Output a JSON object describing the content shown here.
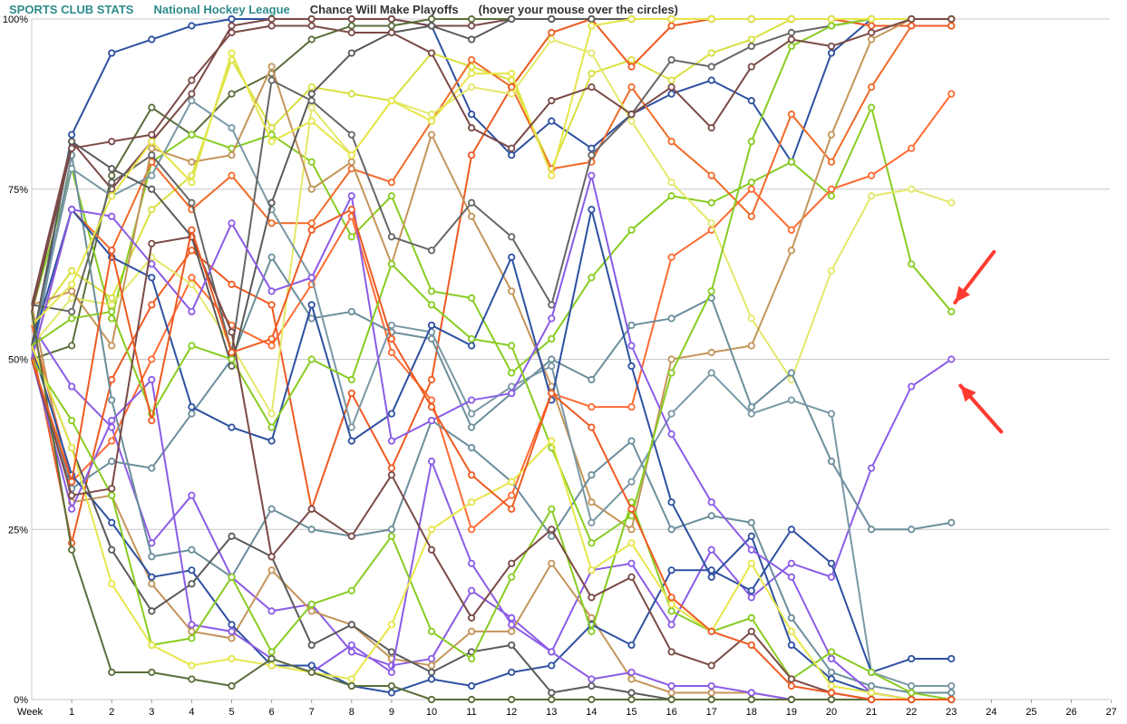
{
  "header": {
    "site": "SPORTS CLUB STATS",
    "league": "National Hockey League",
    "title": "Chance Will Make Playoffs",
    "hint": "(hover your mouse over the circles)"
  },
  "chart_data": {
    "type": "line",
    "title": "Chance Will Make Playoffs",
    "xlabel": "Week",
    "ylabel": "",
    "x_ticks": [
      "Week",
      "1",
      "2",
      "3",
      "4",
      "5",
      "6",
      "7",
      "8",
      "9",
      "10",
      "11",
      "12",
      "13",
      "14",
      "15",
      "16",
      "17",
      "18",
      "19",
      "20",
      "21",
      "22",
      "23",
      "24",
      "25",
      "26",
      "27"
    ],
    "y_ticks": [
      "0%",
      "25%",
      "50%",
      "75%",
      "100%"
    ],
    "xlim": [
      0,
      27
    ],
    "ylim": [
      0,
      100
    ],
    "grid": true,
    "annotations": [
      {
        "type": "arrow",
        "color": "#ff3b30",
        "points_to": {
          "x": 23,
          "y": 57
        }
      },
      {
        "type": "arrow",
        "color": "#ff3b30",
        "points_to": {
          "x": 23,
          "y": 50
        }
      }
    ],
    "series": [
      {
        "color": "#2d50a0",
        "values": [
          50,
          83,
          95,
          97,
          99,
          100,
          100,
          100,
          100,
          100,
          99,
          86,
          80,
          85,
          81,
          86,
          89,
          91,
          88,
          79,
          95,
          100,
          100,
          100
        ]
      },
      {
        "color": "#7a4a46",
        "values": [
          58,
          82,
          75,
          82,
          89,
          99,
          100,
          100,
          100,
          100,
          99,
          99,
          100,
          100,
          100,
          100,
          100,
          100,
          100,
          100,
          100,
          100,
          100,
          100
        ]
      },
      {
        "color": "#5a6e3a",
        "values": [
          50,
          52,
          77,
          87,
          83,
          89,
          92,
          97,
          99,
          99,
          100,
          100,
          100,
          100,
          100,
          100,
          100,
          100,
          100,
          100,
          100,
          100,
          100,
          100
        ]
      },
      {
        "color": "#d9e040",
        "values": [
          55,
          63,
          59,
          72,
          77,
          94,
          84,
          90,
          89,
          88,
          95,
          93,
          91,
          78,
          92,
          94,
          91,
          95,
          97,
          100,
          100,
          100,
          100,
          100
        ]
      },
      {
        "color": "#88cc22",
        "values": [
          57,
          78,
          56,
          79,
          83,
          81,
          83,
          79,
          68,
          74,
          60,
          59,
          48,
          53,
          62,
          69,
          74,
          73,
          76,
          79,
          74,
          87,
          64,
          57
        ]
      },
      {
        "color": "#8b5ce6",
        "values": [
          55,
          46,
          40,
          23,
          30,
          18,
          13,
          14,
          7,
          5,
          6,
          16,
          12,
          7,
          19,
          20,
          11,
          22,
          15,
          20,
          18,
          34,
          46,
          50
        ]
      },
      {
        "color": "#f06a28",
        "values": [
          50,
          72,
          66,
          79,
          72,
          77,
          70,
          70,
          78,
          76,
          85,
          94,
          90,
          78,
          79,
          90,
          82,
          77,
          71,
          86,
          79,
          90,
          99,
          99
        ]
      },
      {
        "color": "#ee5a22",
        "values": [
          52,
          23,
          47,
          58,
          66,
          61,
          58,
          28,
          45,
          34,
          47,
          80,
          90,
          98,
          100,
          93,
          99,
          100,
          100,
          100,
          100,
          99,
          99,
          99
        ]
      },
      {
        "color": "#ff6b33",
        "values": [
          55,
          32,
          38,
          50,
          62,
          55,
          52,
          61,
          71,
          51,
          44,
          25,
          30,
          45,
          43,
          43,
          65,
          69,
          75,
          69,
          75,
          77,
          81,
          89
        ]
      },
      {
        "color": "#e4e86a",
        "values": [
          52,
          59,
          58,
          65,
          61,
          52,
          42,
          87,
          80,
          88,
          86,
          90,
          89,
          97,
          95,
          85,
          76,
          70,
          56,
          47,
          63,
          74,
          75,
          73
        ]
      },
      {
        "color": "#c4955a",
        "values": [
          58,
          60,
          52,
          81,
          79,
          80,
          93,
          75,
          79,
          64,
          83,
          71,
          60,
          46,
          29,
          25,
          50,
          51,
          52,
          66,
          83,
          97,
          100,
          100
        ]
      },
      {
        "color": "#c4955a",
        "values": [
          58,
          29,
          30,
          17,
          10,
          9,
          19,
          13,
          11,
          6,
          5,
          10,
          10,
          20,
          12,
          3,
          1,
          1,
          1,
          0,
          0,
          0,
          0,
          0
        ]
      },
      {
        "color": "#6b8e9b",
        "values": [
          50,
          80,
          44,
          21,
          22,
          18,
          28,
          25,
          24,
          25,
          41,
          37,
          32,
          24,
          33,
          38,
          25,
          27,
          26,
          12,
          4,
          2,
          1,
          1
        ]
      },
      {
        "color": "#6b8e9b",
        "values": [
          50,
          31,
          35,
          34,
          42,
          50,
          65,
          56,
          57,
          54,
          53,
          40,
          45,
          50,
          47,
          55,
          56,
          59,
          43,
          48,
          35,
          25,
          25,
          26
        ]
      },
      {
        "color": "#7a98a5",
        "values": [
          52,
          78,
          74,
          77,
          88,
          84,
          72,
          62,
          40,
          55,
          54,
          42,
          46,
          49,
          26,
          32,
          42,
          48,
          42,
          44,
          42,
          4,
          2,
          2
        ]
      },
      {
        "color": "#2d50a0",
        "values": [
          52,
          72,
          65,
          62,
          43,
          40,
          38,
          58,
          38,
          42,
          55,
          52,
          65,
          44,
          72,
          49,
          29,
          18,
          24,
          8,
          3,
          1,
          0,
          0
        ]
      },
      {
        "color": "#2d50a0",
        "values": [
          52,
          33,
          26,
          18,
          19,
          11,
          5,
          5,
          2,
          1,
          3,
          2,
          4,
          5,
          11,
          8,
          19,
          19,
          16,
          25,
          20,
          4,
          6,
          6
        ]
      },
      {
        "color": "#5a5a5a",
        "values": [
          52,
          82,
          78,
          75,
          68,
          49,
          73,
          89,
          95,
          98,
          99,
          97,
          100,
          100,
          100,
          100,
          100,
          100,
          100,
          100,
          100,
          100,
          100,
          100
        ]
      },
      {
        "color": "#5a5a5a",
        "values": [
          52,
          37,
          22,
          13,
          17,
          24,
          21,
          8,
          11,
          7,
          4,
          7,
          8,
          1,
          2,
          1,
          0,
          0,
          0,
          0,
          0,
          0,
          0,
          0
        ]
      },
      {
        "color": "#666666",
        "values": [
          58,
          57,
          76,
          80,
          73,
          51,
          91,
          88,
          83,
          68,
          66,
          73,
          68,
          58,
          80,
          86,
          94,
          93,
          96,
          98,
          99,
          100,
          100,
          100
        ]
      },
      {
        "color": "#8b5ce6",
        "values": [
          50,
          28,
          41,
          47,
          11,
          10,
          6,
          4,
          8,
          4,
          35,
          20,
          11,
          7,
          3,
          4,
          2,
          2,
          1,
          0,
          0,
          0,
          0,
          0
        ]
      },
      {
        "color": "#8b5ce6",
        "values": [
          50,
          72,
          71,
          64,
          57,
          70,
          60,
          62,
          74,
          38,
          41,
          44,
          45,
          56,
          77,
          52,
          39,
          29,
          22,
          18,
          6,
          1,
          0,
          0
        ]
      },
      {
        "color": "#88cc22",
        "values": [
          50,
          41,
          30,
          8,
          9,
          18,
          7,
          14,
          16,
          24,
          10,
          6,
          18,
          28,
          10,
          29,
          13,
          10,
          12,
          3,
          7,
          4,
          1,
          0
        ]
      },
      {
        "color": "#88cc22",
        "values": [
          52,
          56,
          57,
          42,
          52,
          50,
          40,
          50,
          47,
          64,
          58,
          53,
          52,
          37,
          23,
          27,
          48,
          60,
          82,
          96,
          99,
          100,
          100,
          100
        ]
      },
      {
        "color": "#e6e64a",
        "values": [
          52,
          37,
          17,
          8,
          5,
          6,
          5,
          4,
          3,
          11,
          25,
          29,
          32,
          38,
          19,
          23,
          14,
          10,
          20,
          10,
          2,
          1,
          0,
          0
        ]
      },
      {
        "color": "#e6e64a",
        "values": [
          55,
          61,
          74,
          82,
          76,
          95,
          82,
          85,
          80,
          88,
          85,
          92,
          92,
          77,
          99,
          100,
          100,
          100,
          100,
          100,
          100,
          100,
          100,
          100
        ]
      },
      {
        "color": "#7a4a46",
        "values": [
          57,
          81,
          82,
          83,
          91,
          98,
          99,
          99,
          98,
          98,
          95,
          84,
          81,
          88,
          90,
          86,
          90,
          84,
          93,
          97,
          96,
          98,
          100,
          100
        ]
      },
      {
        "color": "#7a4a46",
        "values": [
          50,
          30,
          31,
          67,
          68,
          54,
          21,
          28,
          24,
          33,
          22,
          12,
          20,
          25,
          15,
          18,
          7,
          5,
          10,
          3,
          1,
          0,
          0,
          0
        ]
      },
      {
        "color": "#5a6e3a",
        "values": [
          57,
          22,
          4,
          4,
          3,
          2,
          6,
          4,
          2,
          2,
          0,
          0,
          0,
          0,
          0,
          0,
          0,
          0,
          0,
          0,
          0,
          0,
          0,
          0
        ]
      },
      {
        "color": "#ee5a22",
        "values": [
          50,
          32,
          66,
          41,
          69,
          51,
          53,
          69,
          72,
          53,
          43,
          33,
          28,
          45,
          40,
          28,
          15,
          10,
          8,
          2,
          1,
          0,
          0,
          0
        ]
      }
    ]
  }
}
